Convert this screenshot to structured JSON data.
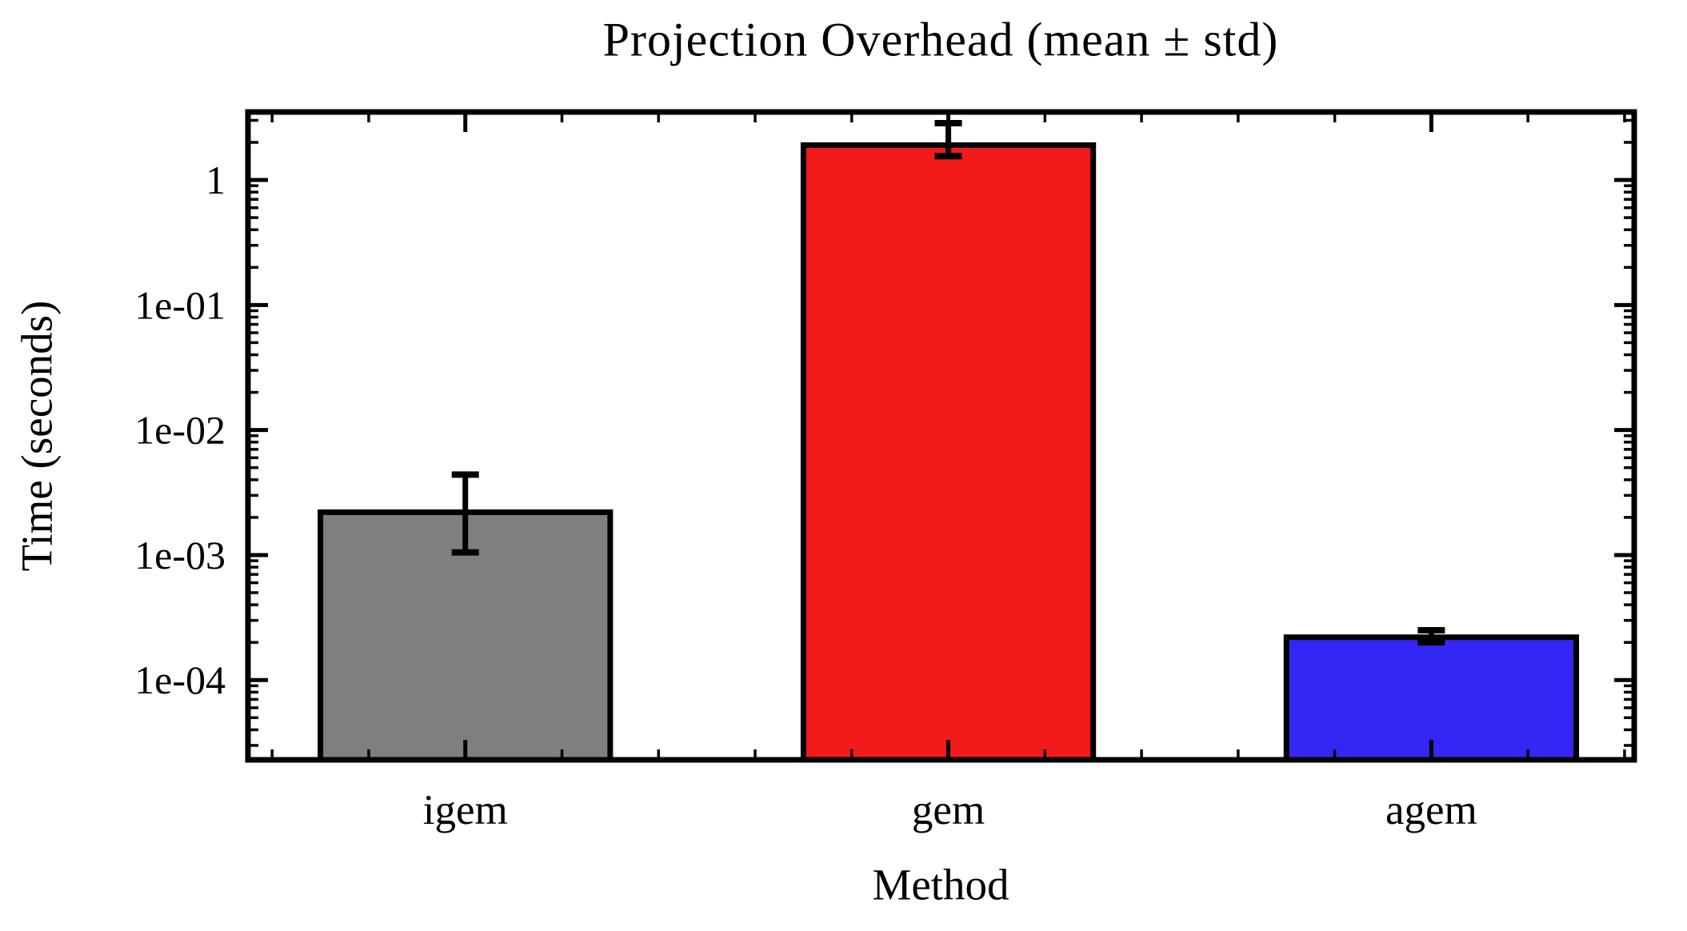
{
  "chart_data": {
    "type": "bar",
    "title": "Projection Overhead (mean ± std)",
    "xlabel": "Method",
    "ylabel": "Time (seconds)",
    "categories": [
      "igem",
      "gem",
      "agem"
    ],
    "values": [
      0.0022,
      1.9,
      0.00022
    ],
    "error_upper_abs": [
      0.0044,
      2.85,
      0.00025
    ],
    "error_lower_abs": [
      0.00105,
      1.55,
      0.0002
    ],
    "bar_colors": [
      "#7f7f7f",
      "#f21a1a",
      "#3427f5"
    ],
    "bar_edge_color": "#000000",
    "error_color": "#000000",
    "yscale": "log",
    "ylim": [
      2.3e-05,
      3.5
    ],
    "xlim": [
      -0.45,
      2.42
    ],
    "bar_width": 0.6,
    "yticks": {
      "values": [
        1,
        0.1,
        0.01,
        0.001,
        0.0001
      ],
      "labels": [
        "1",
        "1e-01",
        "1e-02",
        "1e-03",
        "1e-04"
      ]
    },
    "grid": false,
    "legend": false,
    "background": "#ffffff",
    "tick_direction": "in",
    "ticks_all_sides": true
  }
}
